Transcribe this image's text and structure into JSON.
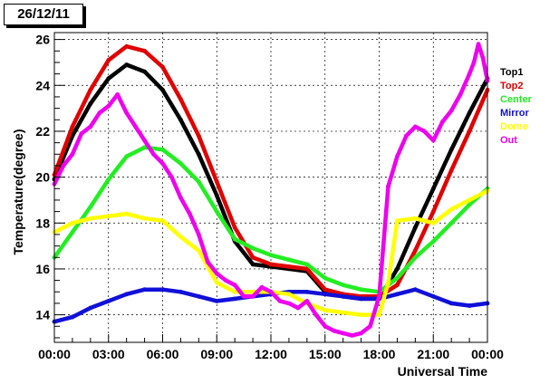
{
  "title": "26/12/11",
  "colors": {
    "Top1": "#000000",
    "Top2": "#e00000",
    "Center": "#22ee22",
    "Mirror": "#1010d8",
    "Dome": "#ffff00",
    "Out": "#ee00ee"
  },
  "chart_data": {
    "type": "scatter",
    "title": "26/12/11",
    "xlabel": "Universal Time",
    "ylabel": "Temperature(degree)",
    "xlim": [
      0,
      24
    ],
    "ylim": [
      12.8,
      26.3
    ],
    "x_ticks": [
      0,
      3,
      6,
      9,
      12,
      15,
      18,
      21,
      24
    ],
    "x_tick_labels": [
      "00:00",
      "03:00",
      "06:00",
      "09:00",
      "12:00",
      "15:00",
      "18:00",
      "21:00",
      "00:00"
    ],
    "y_ticks": [
      14,
      16,
      18,
      20,
      22,
      24,
      26
    ],
    "y_tick_labels": [
      "14",
      "16",
      "18",
      "20",
      "22",
      "24",
      "26"
    ],
    "grid": true,
    "legend_position": "right",
    "series": [
      {
        "name": "Top1",
        "x": [
          0,
          1,
          2,
          3,
          4,
          5,
          6,
          7,
          8,
          9,
          10,
          11,
          12,
          13,
          14,
          15,
          16,
          17,
          18,
          19,
          20,
          21,
          22,
          23,
          24
        ],
        "y": [
          19.9,
          21.8,
          23.2,
          24.3,
          24.9,
          24.6,
          23.8,
          22.5,
          21.0,
          19.2,
          17.2,
          16.2,
          16.1,
          16.0,
          15.9,
          15.0,
          14.8,
          14.7,
          14.7,
          16.0,
          17.8,
          19.5,
          21.2,
          22.8,
          24.3
        ]
      },
      {
        "name": "Top2",
        "x": [
          0,
          1,
          2,
          3,
          4,
          5,
          6,
          7,
          8,
          9,
          10,
          11,
          12,
          13,
          14,
          15,
          16,
          17,
          18,
          19,
          20,
          21,
          22,
          23,
          24
        ],
        "y": [
          20.1,
          22.2,
          23.8,
          25.1,
          25.7,
          25.5,
          24.8,
          23.4,
          21.8,
          19.8,
          17.8,
          16.5,
          16.2,
          16.1,
          16.0,
          15.1,
          14.9,
          14.8,
          14.8,
          15.3,
          16.8,
          18.5,
          20.3,
          22.0,
          23.8
        ]
      },
      {
        "name": "Center",
        "x": [
          0,
          1,
          2,
          3,
          4,
          5,
          6,
          7,
          8,
          9,
          10,
          11,
          12,
          13,
          14,
          15,
          16,
          17,
          18,
          19,
          20,
          21,
          22,
          23,
          24
        ],
        "y": [
          16.5,
          17.6,
          18.7,
          19.9,
          20.9,
          21.3,
          21.2,
          20.6,
          19.8,
          18.5,
          17.3,
          16.9,
          16.6,
          16.4,
          16.2,
          15.6,
          15.3,
          15.1,
          15.0,
          15.6,
          16.5,
          17.2,
          18.0,
          18.8,
          19.5
        ]
      },
      {
        "name": "Mirror",
        "x": [
          0,
          1,
          2,
          3,
          4,
          5,
          6,
          7,
          8,
          9,
          10,
          11,
          12,
          13,
          14,
          15,
          16,
          17,
          18,
          19,
          20,
          21,
          22,
          23,
          24
        ],
        "y": [
          13.7,
          13.9,
          14.3,
          14.6,
          14.9,
          15.1,
          15.1,
          15.0,
          14.8,
          14.6,
          14.7,
          14.8,
          14.9,
          15.0,
          15.0,
          14.9,
          14.8,
          14.7,
          14.7,
          14.9,
          15.1,
          14.8,
          14.5,
          14.4,
          14.5
        ]
      },
      {
        "name": "Dome",
        "x": [
          0,
          1,
          2,
          3,
          4,
          5,
          6,
          7,
          8,
          9,
          10,
          11,
          12,
          13,
          14,
          15,
          16,
          17,
          18,
          18.5,
          19,
          20,
          21,
          22,
          23,
          24
        ],
        "y": [
          17.6,
          18.0,
          18.2,
          18.3,
          18.4,
          18.2,
          18.1,
          17.4,
          16.8,
          15.4,
          15.0,
          15.0,
          15.0,
          14.9,
          14.5,
          14.2,
          14.1,
          14.0,
          14.0,
          15.4,
          18.1,
          18.2,
          18.0,
          18.6,
          19.0,
          19.4
        ]
      },
      {
        "name": "Out",
        "x": [
          0,
          0.5,
          1,
          1.5,
          2,
          2.5,
          3,
          3.5,
          4,
          4.5,
          5,
          5.5,
          6,
          6.5,
          7,
          7.5,
          8,
          8.5,
          9,
          9.5,
          10,
          10.5,
          11,
          11.5,
          12,
          12.5,
          13,
          13.5,
          14,
          14.5,
          15,
          15.5,
          16,
          16.5,
          17,
          17.5,
          18,
          18.5,
          19,
          19.5,
          20,
          20.5,
          21,
          21.5,
          22,
          22.5,
          23,
          23.25,
          23.5,
          23.75,
          24
        ],
        "y": [
          19.7,
          20.5,
          21.0,
          21.9,
          22.2,
          22.8,
          23.1,
          23.6,
          22.8,
          22.2,
          21.6,
          21.0,
          20.6,
          20.0,
          19.1,
          18.4,
          17.5,
          16.3,
          15.8,
          15.5,
          15.3,
          14.8,
          14.8,
          15.2,
          15.0,
          14.6,
          14.5,
          14.3,
          14.6,
          14.0,
          13.5,
          13.3,
          13.2,
          13.1,
          13.2,
          13.5,
          14.8,
          19.6,
          20.9,
          21.8,
          22.2,
          22.0,
          21.6,
          22.4,
          22.9,
          23.6,
          24.5,
          25.0,
          25.8,
          25.2,
          24.2
        ]
      }
    ]
  }
}
